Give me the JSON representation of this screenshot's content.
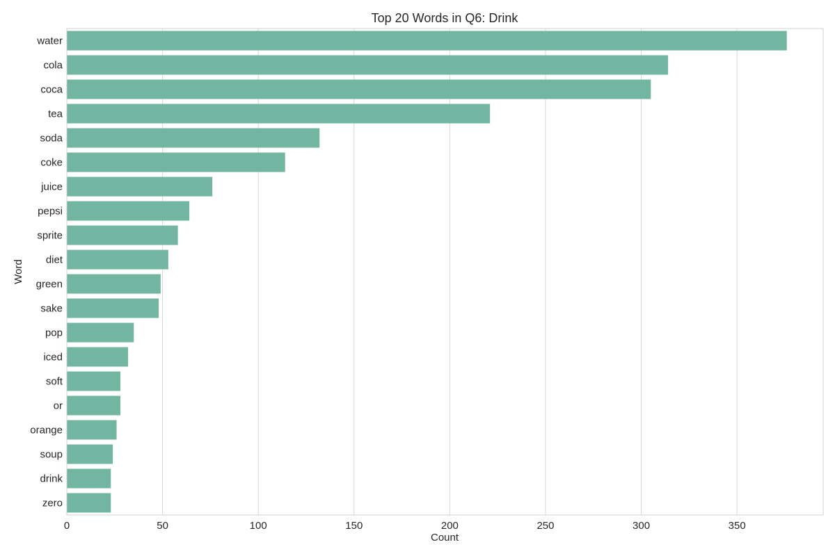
{
  "chart_data": {
    "type": "bar",
    "orientation": "horizontal",
    "title": "Top 20 Words in Q6: Drink",
    "xlabel": "Count",
    "ylabel": "Word",
    "categories": [
      "water",
      "cola",
      "coca",
      "tea",
      "soda",
      "coke",
      "juice",
      "pepsi",
      "sprite",
      "diet",
      "green",
      "sake",
      "pop",
      "iced",
      "soft",
      "or",
      "orange",
      "soup",
      "drink",
      "zero"
    ],
    "values": [
      376,
      314,
      305,
      221,
      132,
      114,
      76,
      64,
      58,
      53,
      49,
      48,
      35,
      32,
      28,
      28,
      26,
      24,
      23,
      23
    ],
    "xlim": [
      0,
      395
    ],
    "xticks": [
      0,
      50,
      100,
      150,
      200,
      250,
      300,
      350
    ],
    "grid": true,
    "bar_color": "#72b6a1"
  }
}
